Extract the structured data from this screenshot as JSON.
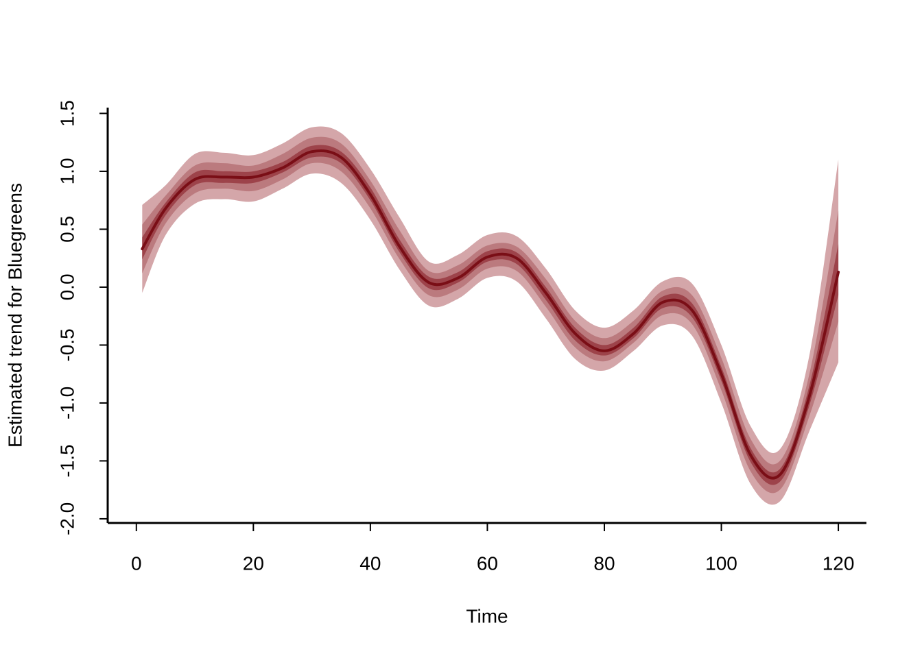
{
  "chart_data": {
    "type": "line",
    "x_label": "Time",
    "y_label": "Estimated trend for Bluegreens",
    "x": [
      1,
      5,
      10,
      15,
      20,
      25,
      30,
      35,
      40,
      45,
      50,
      55,
      60,
      65,
      70,
      75,
      80,
      85,
      90,
      95,
      100,
      105,
      110,
      115,
      120
    ],
    "series": [
      {
        "color": "#7a0e16",
        "values": [
          0.33,
          0.68,
          0.93,
          0.95,
          0.95,
          1.03,
          1.17,
          1.12,
          0.8,
          0.35,
          0.04,
          0.08,
          0.26,
          0.25,
          -0.05,
          -0.4,
          -0.55,
          -0.4,
          -0.13,
          -0.2,
          -0.75,
          -1.45,
          -1.62,
          -0.95,
          0.13
        ]
      }
    ],
    "bands": [
      {
        "color": "#d4a6a9",
        "lower": [
          -0.05,
          0.45,
          0.72,
          0.76,
          0.74,
          0.85,
          0.98,
          0.9,
          0.58,
          0.15,
          -0.16,
          -0.1,
          0.08,
          0.05,
          -0.27,
          -0.62,
          -0.72,
          -0.55,
          -0.33,
          -0.42,
          -1.0,
          -1.7,
          -1.85,
          -1.25,
          -0.65
        ],
        "upper": [
          0.71,
          0.88,
          1.15,
          1.16,
          1.14,
          1.24,
          1.38,
          1.33,
          1.02,
          0.6,
          0.22,
          0.28,
          0.45,
          0.44,
          0.16,
          -0.2,
          -0.35,
          -0.2,
          0.05,
          0.03,
          -0.5,
          -1.2,
          -1.4,
          -0.6,
          1.1
        ]
      },
      {
        "color": "#bb7a7e",
        "lower": [
          0.12,
          0.55,
          0.81,
          0.85,
          0.83,
          0.93,
          1.07,
          1.0,
          0.68,
          0.24,
          -0.07,
          -0.02,
          0.16,
          0.14,
          -0.17,
          -0.52,
          -0.64,
          -0.48,
          -0.24,
          -0.32,
          -0.89,
          -1.59,
          -1.75,
          -1.12,
          -0.3
        ],
        "upper": [
          0.54,
          0.79,
          1.05,
          1.07,
          1.05,
          1.15,
          1.29,
          1.24,
          0.92,
          0.49,
          0.14,
          0.19,
          0.36,
          0.35,
          0.07,
          -0.29,
          -0.44,
          -0.29,
          -0.03,
          -0.07,
          -0.61,
          -1.31,
          -1.5,
          -0.76,
          0.66
        ]
      },
      {
        "color": "#9d434a",
        "lower": [
          0.24,
          0.62,
          0.88,
          0.9,
          0.9,
          0.99,
          1.12,
          1.07,
          0.75,
          0.3,
          -0.01,
          0.04,
          0.22,
          0.2,
          -0.11,
          -0.46,
          -0.59,
          -0.44,
          -0.18,
          -0.26,
          -0.81,
          -1.51,
          -1.68,
          -1.03,
          -0.07
        ],
        "upper": [
          0.43,
          0.73,
          0.99,
          1.0,
          1.0,
          1.08,
          1.22,
          1.17,
          0.86,
          0.41,
          0.09,
          0.13,
          0.31,
          0.3,
          0.0,
          -0.35,
          -0.5,
          -0.35,
          -0.08,
          -0.14,
          -0.69,
          -1.39,
          -1.57,
          -0.86,
          0.37
        ]
      }
    ],
    "xlim": [
      -4.9,
      124.8
    ],
    "ylim": [
      -2.036,
      1.55
    ],
    "xticks": [
      0,
      20,
      40,
      60,
      80,
      100,
      120
    ],
    "yticks": [
      {
        "value": -2,
        "label": "-2.0"
      },
      -1.5,
      {
        "value": -1,
        "label": "-1.0"
      },
      -0.5,
      {
        "value": 0,
        "label": "0.0"
      },
      0.5,
      {
        "value": 1,
        "label": "1.0"
      },
      1.5
    ]
  }
}
